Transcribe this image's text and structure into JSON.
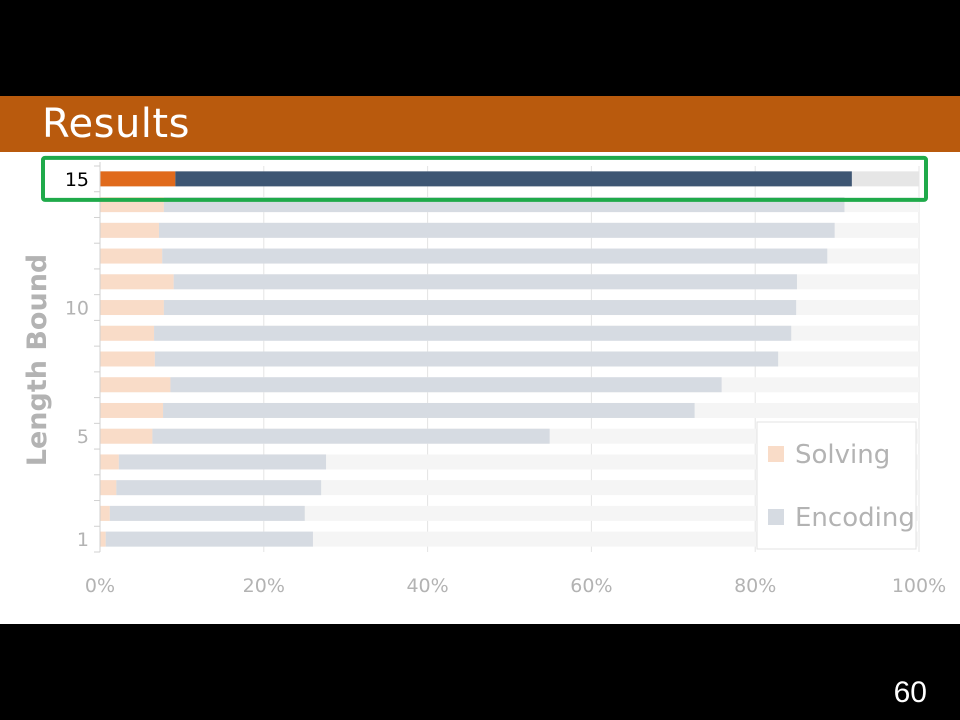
{
  "slide": {
    "title": "Results",
    "page_number": "60"
  },
  "colors": {
    "title_bar": "#b95a0d",
    "solving_faded": "#f9dcc8",
    "encoding_faded": "#d6dbe2",
    "remainder_faded": "#f5f5f5",
    "solving_highlight": "#e06a1b",
    "encoding_highlight": "#3e5673",
    "remainder_highlight": "#e6e6e6",
    "highlight_box": "#1faa4a",
    "axis_text": "#b3b3b3"
  },
  "chart_data": {
    "type": "bar",
    "orientation": "horizontal",
    "stacked": "100%",
    "title": "",
    "xlabel": "",
    "ylabel": "Length Bound",
    "categories": [
      "1",
      "2",
      "3",
      "4",
      "5",
      "6",
      "7",
      "8",
      "9",
      "10",
      "11",
      "12",
      "13",
      "14",
      "15"
    ],
    "y_tick_labels": [
      "1",
      "5",
      "10",
      "15"
    ],
    "x_tick_labels": [
      "0%",
      "20%",
      "40%",
      "60%",
      "80%",
      "100%"
    ],
    "xlim": [
      0,
      100
    ],
    "series": [
      {
        "name": "Solving",
        "values": [
          0.7,
          1.2,
          2.0,
          2.3,
          6.4,
          7.7,
          8.6,
          6.7,
          6.6,
          7.8,
          9.0,
          7.6,
          7.2,
          7.8,
          9.2
        ]
      },
      {
        "name": "Encoding",
        "values": [
          25.3,
          23.8,
          25.0,
          25.3,
          48.5,
          64.9,
          67.3,
          76.1,
          77.8,
          77.2,
          76.1,
          81.2,
          82.5,
          83.1,
          82.6
        ]
      }
    ],
    "highlighted_category": "15",
    "legend": {
      "position": "bottom-right",
      "entries": [
        "Solving",
        "Encoding"
      ]
    },
    "grid": true
  }
}
